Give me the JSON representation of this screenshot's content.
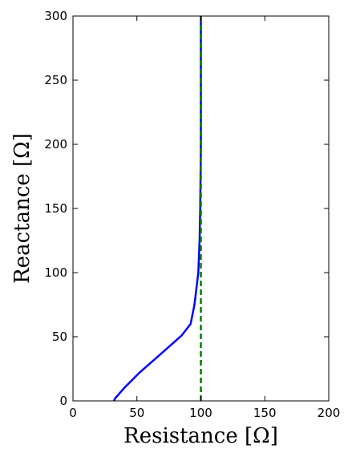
{
  "chart_data": {
    "type": "line",
    "title": "",
    "xlabel": "Resistance [Ω]",
    "ylabel": "Reactance [Ω]",
    "xlim": [
      0,
      200
    ],
    "ylim": [
      0,
      300
    ],
    "xticks": [
      0,
      50,
      100,
      150,
      200
    ],
    "yticks": [
      0,
      50,
      100,
      150,
      200,
      250,
      300
    ],
    "xtick_labels": [
      "0",
      "50",
      "100",
      "150",
      "200"
    ],
    "ytick_labels": [
      "0",
      "50",
      "100",
      "150",
      "200",
      "250",
      "300"
    ],
    "grid": false,
    "legend": "none",
    "series": [
      {
        "color": "#0000ff",
        "style": "solid",
        "x": [
          32,
          33,
          40,
          52,
          68,
          85,
          92,
          95,
          98,
          99,
          99.5,
          100,
          100,
          100
        ],
        "y": [
          0,
          2,
          10,
          22,
          36,
          51,
          60,
          75,
          100,
          125,
          150,
          200,
          250,
          300
        ]
      },
      {
        "color": "#008000",
        "style": "dashed",
        "x": [
          100,
          100
        ],
        "y": [
          0,
          300
        ]
      }
    ]
  }
}
